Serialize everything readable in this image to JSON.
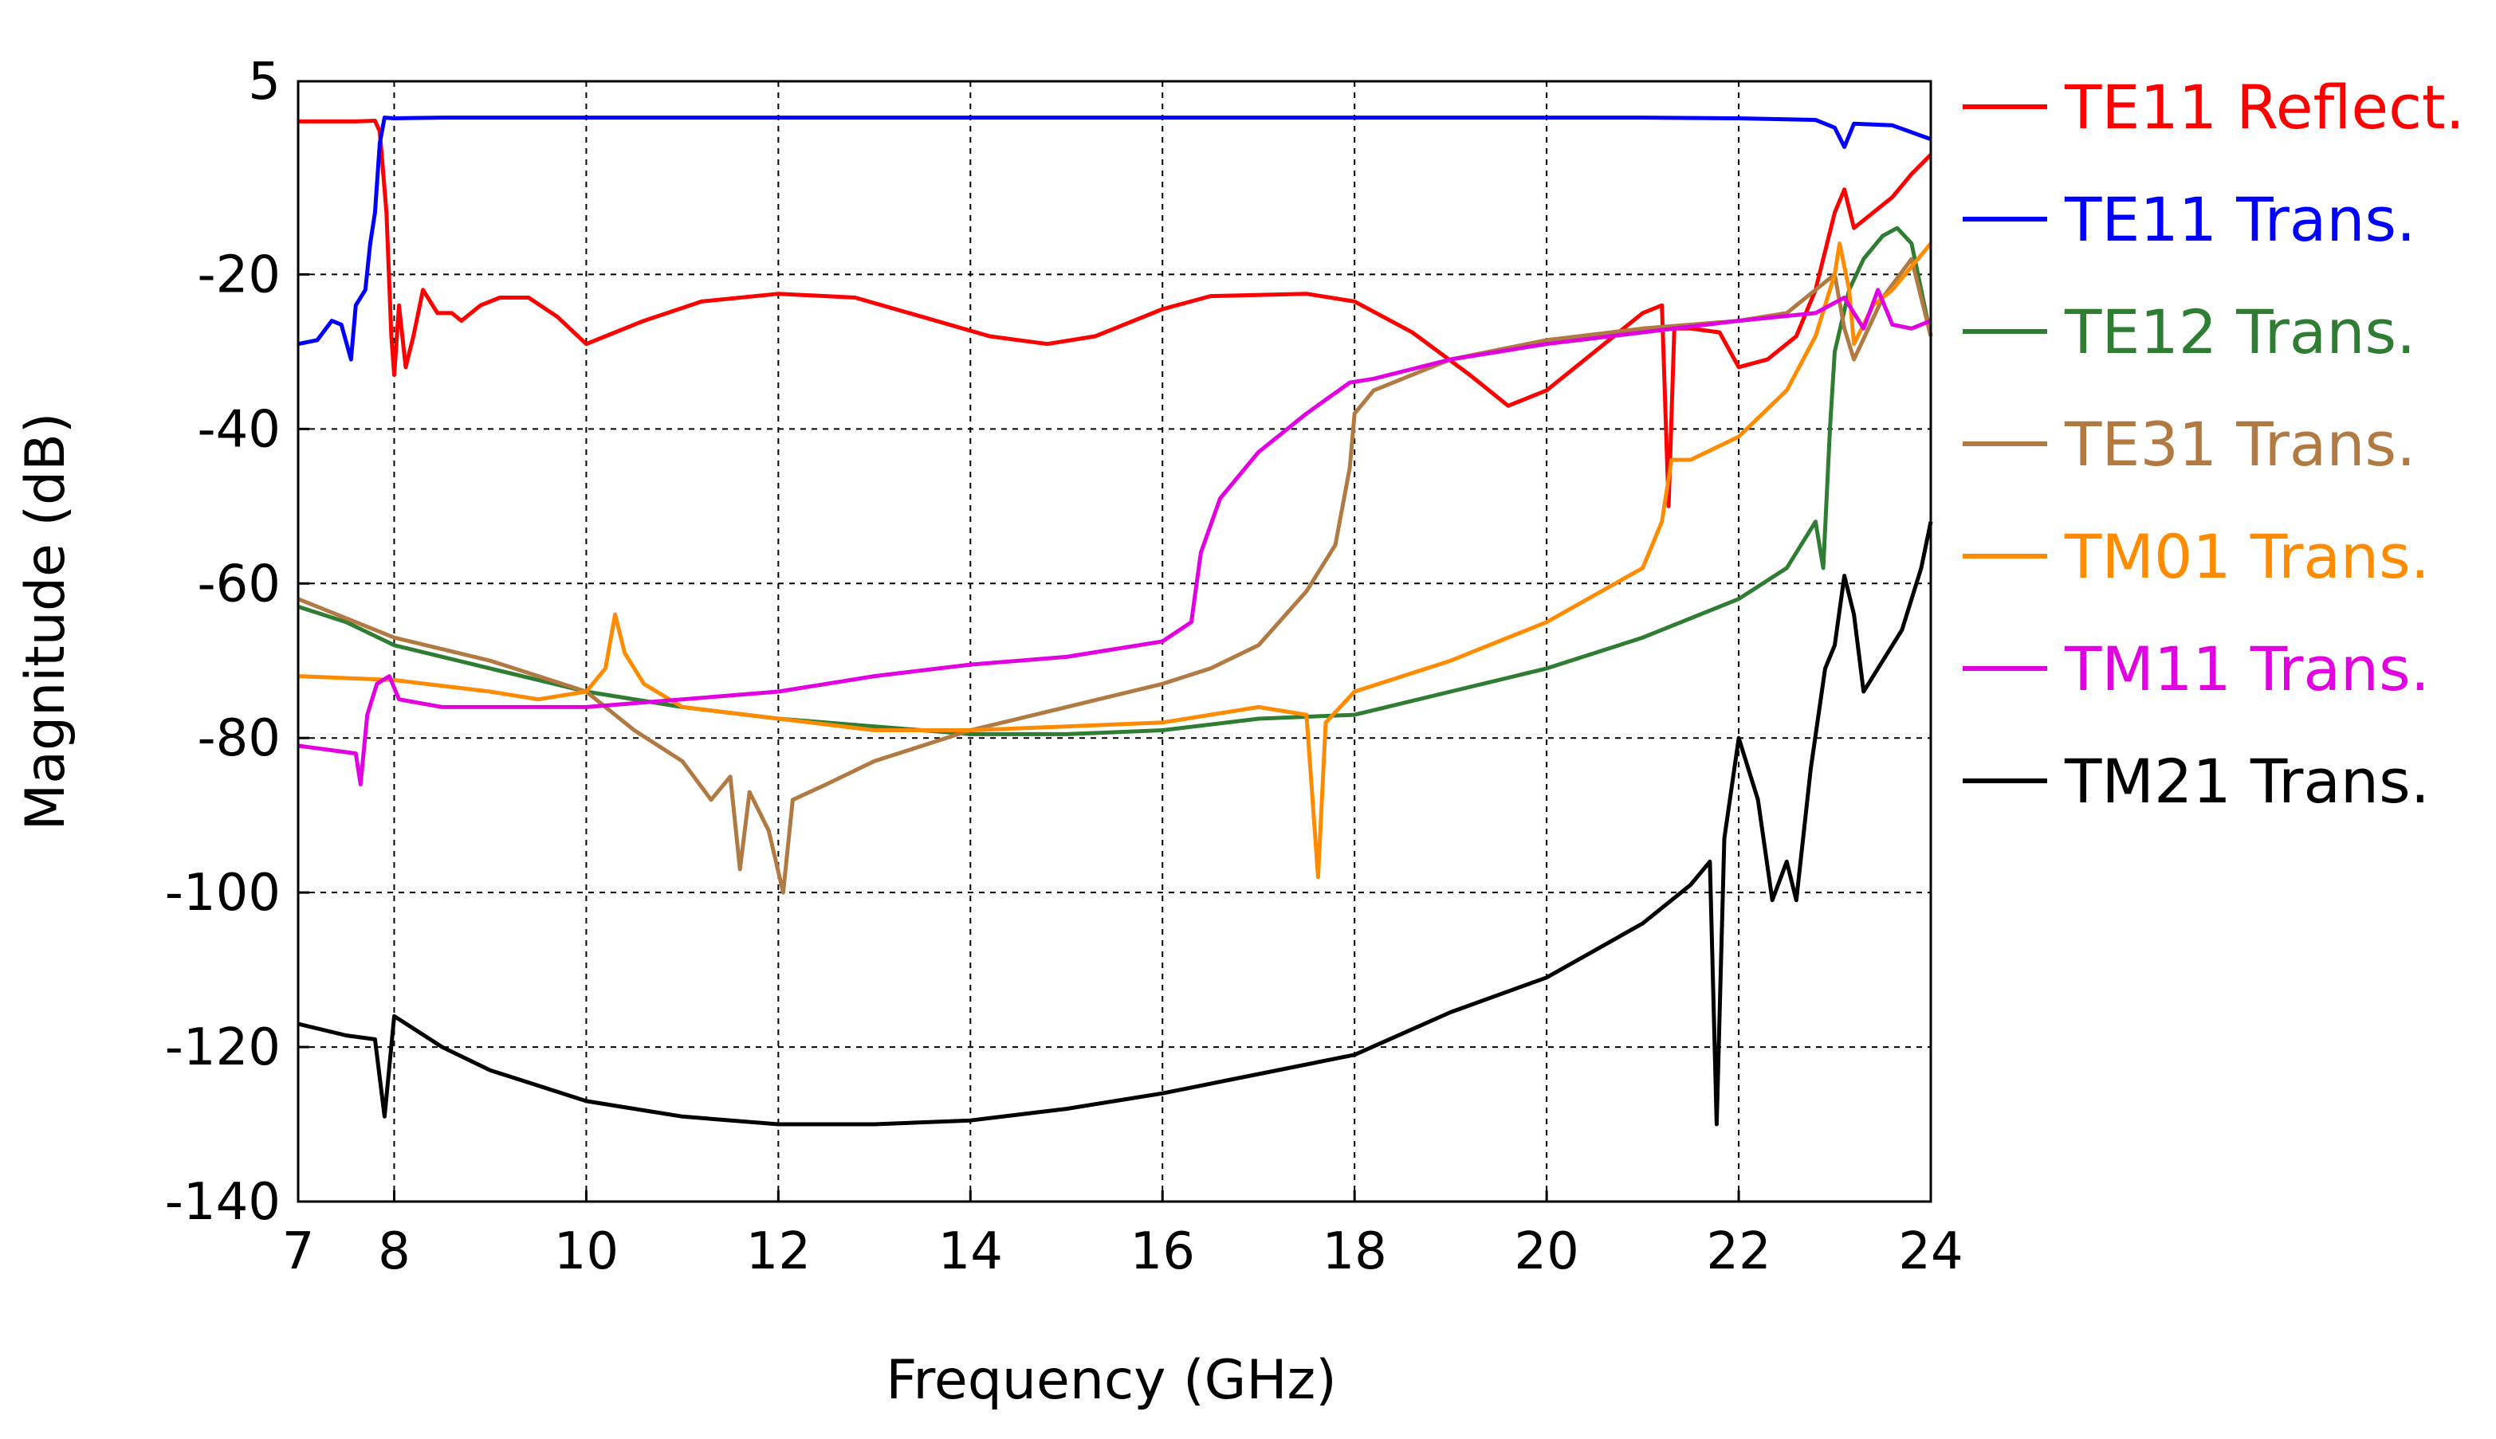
{
  "chart_data": {
    "type": "line",
    "xlabel": "Frequency (GHz)",
    "ylabel": "Magnitude (dB)",
    "xlim": [
      7,
      24
    ],
    "ylim": [
      -140,
      5
    ],
    "xticks": [
      7,
      8,
      10,
      12,
      14,
      16,
      18,
      20,
      22,
      24
    ],
    "yticks": [
      5,
      -20,
      -40,
      -60,
      -80,
      -100,
      -120,
      -140
    ],
    "grid": true,
    "legend_position": "right",
    "series": [
      {
        "name": "TE11 Reflect.",
        "color": "#ff0000",
        "points": [
          [
            7,
            -0.2
          ],
          [
            7.6,
            -0.2
          ],
          [
            7.8,
            -0.1
          ],
          [
            7.85,
            -1.5
          ],
          [
            7.92,
            -12
          ],
          [
            7.97,
            -28
          ],
          [
            8.0,
            -33
          ],
          [
            8.05,
            -24
          ],
          [
            8.12,
            -32
          ],
          [
            8.2,
            -28
          ],
          [
            8.3,
            -22
          ],
          [
            8.45,
            -25
          ],
          [
            8.6,
            -25
          ],
          [
            8.7,
            -26
          ],
          [
            8.9,
            -24
          ],
          [
            9.1,
            -23
          ],
          [
            9.4,
            -23
          ],
          [
            9.7,
            -25.5
          ],
          [
            10.0,
            -29
          ],
          [
            10.2,
            -28
          ],
          [
            10.6,
            -26
          ],
          [
            11.2,
            -23.5
          ],
          [
            12.0,
            -22.5
          ],
          [
            12.8,
            -23
          ],
          [
            13.5,
            -25.5
          ],
          [
            14.2,
            -28
          ],
          [
            14.8,
            -29
          ],
          [
            15.3,
            -28
          ],
          [
            16.0,
            -24.5
          ],
          [
            16.5,
            -22.8
          ],
          [
            17.5,
            -22.5
          ],
          [
            18.0,
            -23.5
          ],
          [
            18.6,
            -27.5
          ],
          [
            19.2,
            -33
          ],
          [
            19.6,
            -37
          ],
          [
            20.0,
            -35
          ],
          [
            20.6,
            -29
          ],
          [
            21.0,
            -25
          ],
          [
            21.2,
            -24
          ],
          [
            21.27,
            -50
          ],
          [
            21.33,
            -27
          ],
          [
            21.5,
            -27
          ],
          [
            21.8,
            -27.5
          ],
          [
            22.0,
            -32
          ],
          [
            22.3,
            -31
          ],
          [
            22.6,
            -28
          ],
          [
            22.8,
            -22
          ],
          [
            23.0,
            -12
          ],
          [
            23.1,
            -9
          ],
          [
            23.2,
            -14
          ],
          [
            23.4,
            -12
          ],
          [
            23.6,
            -10
          ],
          [
            23.8,
            -7
          ],
          [
            24,
            -4.5
          ]
        ]
      },
      {
        "name": "TE11 Trans.",
        "color": "#0000ff",
        "points": [
          [
            7,
            -29
          ],
          [
            7.2,
            -28.5
          ],
          [
            7.35,
            -26
          ],
          [
            7.45,
            -26.5
          ],
          [
            7.55,
            -31
          ],
          [
            7.6,
            -24
          ],
          [
            7.7,
            -22
          ],
          [
            7.75,
            -16
          ],
          [
            7.8,
            -12
          ],
          [
            7.85,
            -3
          ],
          [
            7.9,
            0.3
          ],
          [
            8.0,
            0.2
          ],
          [
            8.5,
            0.3
          ],
          [
            10,
            0.3
          ],
          [
            14,
            0.3
          ],
          [
            18,
            0.3
          ],
          [
            21,
            0.3
          ],
          [
            22,
            0.2
          ],
          [
            22.8,
            0
          ],
          [
            23.0,
            -1
          ],
          [
            23.1,
            -3.5
          ],
          [
            23.2,
            -0.5
          ],
          [
            23.6,
            -0.7
          ],
          [
            24,
            -2.5
          ]
        ]
      },
      {
        "name": "TE12 Trans.",
        "color": "#2e7d32",
        "points": [
          [
            7,
            -63
          ],
          [
            7.5,
            -65
          ],
          [
            8,
            -68
          ],
          [
            9,
            -71
          ],
          [
            10,
            -74
          ],
          [
            11,
            -76
          ],
          [
            12,
            -77.5
          ],
          [
            13,
            -78.5
          ],
          [
            14,
            -79.5
          ],
          [
            15,
            -79.5
          ],
          [
            16,
            -79
          ],
          [
            17,
            -77.5
          ],
          [
            18,
            -77
          ],
          [
            19,
            -74
          ],
          [
            20,
            -71
          ],
          [
            21,
            -67
          ],
          [
            22,
            -62
          ],
          [
            22.5,
            -58
          ],
          [
            22.8,
            -52
          ],
          [
            22.88,
            -58
          ],
          [
            22.95,
            -40
          ],
          [
            23.0,
            -30
          ],
          [
            23.15,
            -22
          ],
          [
            23.3,
            -18
          ],
          [
            23.5,
            -15
          ],
          [
            23.65,
            -14
          ],
          [
            23.8,
            -16
          ],
          [
            24,
            -28
          ]
        ]
      },
      {
        "name": "TE31 Trans.",
        "color": "#b07a42",
        "points": [
          [
            7,
            -62
          ],
          [
            8,
            -67
          ],
          [
            9,
            -70
          ],
          [
            10,
            -74
          ],
          [
            10.5,
            -79
          ],
          [
            11,
            -83
          ],
          [
            11.3,
            -88
          ],
          [
            11.5,
            -85
          ],
          [
            11.6,
            -97
          ],
          [
            11.7,
            -87
          ],
          [
            11.9,
            -92
          ],
          [
            12.05,
            -100
          ],
          [
            12.15,
            -88
          ],
          [
            12.5,
            -86
          ],
          [
            13,
            -83
          ],
          [
            13.5,
            -81
          ],
          [
            14,
            -79
          ],
          [
            15,
            -76
          ],
          [
            16,
            -73
          ],
          [
            16.5,
            -71
          ],
          [
            17,
            -68
          ],
          [
            17.5,
            -61
          ],
          [
            17.8,
            -55
          ],
          [
            17.95,
            -45
          ],
          [
            18.0,
            -38
          ],
          [
            18.2,
            -35
          ],
          [
            19,
            -31
          ],
          [
            20,
            -28.5
          ],
          [
            21,
            -27
          ],
          [
            22,
            -26
          ],
          [
            22.5,
            -25
          ],
          [
            23,
            -20
          ],
          [
            23.1,
            -27
          ],
          [
            23.2,
            -31
          ],
          [
            23.5,
            -23
          ],
          [
            23.8,
            -18
          ],
          [
            24,
            -28
          ]
        ]
      },
      {
        "name": "TM01 Trans.",
        "color": "#ff8c00",
        "points": [
          [
            7,
            -72
          ],
          [
            8,
            -72.5
          ],
          [
            9,
            -74
          ],
          [
            9.5,
            -75
          ],
          [
            10,
            -74
          ],
          [
            10.2,
            -71
          ],
          [
            10.3,
            -64
          ],
          [
            10.4,
            -69
          ],
          [
            10.6,
            -73
          ],
          [
            11,
            -76
          ],
          [
            12,
            -77.5
          ],
          [
            13,
            -79
          ],
          [
            14,
            -79
          ],
          [
            15,
            -78.5
          ],
          [
            16,
            -78
          ],
          [
            17,
            -76
          ],
          [
            17.5,
            -77
          ],
          [
            17.62,
            -98
          ],
          [
            17.7,
            -78
          ],
          [
            18,
            -74
          ],
          [
            18.5,
            -72
          ],
          [
            19,
            -70
          ],
          [
            20,
            -65
          ],
          [
            21,
            -58
          ],
          [
            21.2,
            -52
          ],
          [
            21.3,
            -44
          ],
          [
            21.5,
            -44
          ],
          [
            22,
            -41
          ],
          [
            22.5,
            -35
          ],
          [
            22.8,
            -28
          ],
          [
            23.0,
            -20
          ],
          [
            23.05,
            -16
          ],
          [
            23.15,
            -22
          ],
          [
            23.2,
            -29
          ],
          [
            23.4,
            -24
          ],
          [
            23.6,
            -22
          ],
          [
            23.8,
            -19
          ],
          [
            24,
            -16
          ]
        ]
      },
      {
        "name": "TM11 Trans.",
        "color": "#e000e0",
        "points": [
          [
            7,
            -81
          ],
          [
            7.6,
            -82
          ],
          [
            7.65,
            -86
          ],
          [
            7.72,
            -77
          ],
          [
            7.82,
            -73
          ],
          [
            7.95,
            -72
          ],
          [
            8.05,
            -75
          ],
          [
            8.5,
            -76
          ],
          [
            9,
            -76
          ],
          [
            10,
            -76
          ],
          [
            11,
            -75
          ],
          [
            12,
            -74
          ],
          [
            13,
            -72
          ],
          [
            14,
            -70.5
          ],
          [
            15,
            -69.5
          ],
          [
            16,
            -67.5
          ],
          [
            16.3,
            -65
          ],
          [
            16.4,
            -56
          ],
          [
            16.6,
            -49
          ],
          [
            17.0,
            -43
          ],
          [
            17.5,
            -38
          ],
          [
            17.95,
            -34
          ],
          [
            18.2,
            -33.5
          ],
          [
            19,
            -31
          ],
          [
            20,
            -29
          ],
          [
            21,
            -27.5
          ],
          [
            22,
            -26
          ],
          [
            22.8,
            -25
          ],
          [
            23.1,
            -23
          ],
          [
            23.3,
            -27
          ],
          [
            23.45,
            -22
          ],
          [
            23.6,
            -26.5
          ],
          [
            23.8,
            -27
          ],
          [
            24,
            -26
          ]
        ]
      },
      {
        "name": "TM21 Trans.",
        "color": "#000000",
        "points": [
          [
            7,
            -117
          ],
          [
            7.5,
            -118.5
          ],
          [
            7.8,
            -119
          ],
          [
            7.9,
            -129
          ],
          [
            8.0,
            -116
          ],
          [
            8.5,
            -120
          ],
          [
            9,
            -123
          ],
          [
            10,
            -127
          ],
          [
            11,
            -129
          ],
          [
            12,
            -130
          ],
          [
            13,
            -130
          ],
          [
            14,
            -129.5
          ],
          [
            15,
            -128
          ],
          [
            16,
            -126
          ],
          [
            17,
            -123.5
          ],
          [
            18,
            -121
          ],
          [
            19,
            -115.5
          ],
          [
            20,
            -111
          ],
          [
            21,
            -104
          ],
          [
            21.5,
            -99
          ],
          [
            21.7,
            -96
          ],
          [
            21.77,
            -130
          ],
          [
            21.85,
            -93
          ],
          [
            22.0,
            -80
          ],
          [
            22.2,
            -88
          ],
          [
            22.35,
            -101
          ],
          [
            22.5,
            -96
          ],
          [
            22.6,
            -101
          ],
          [
            22.75,
            -84
          ],
          [
            22.9,
            -71
          ],
          [
            23.0,
            -68
          ],
          [
            23.1,
            -59
          ],
          [
            23.2,
            -64
          ],
          [
            23.3,
            -74
          ],
          [
            23.5,
            -70
          ],
          [
            23.7,
            -66
          ],
          [
            23.9,
            -58
          ],
          [
            24,
            -52
          ]
        ]
      }
    ]
  }
}
